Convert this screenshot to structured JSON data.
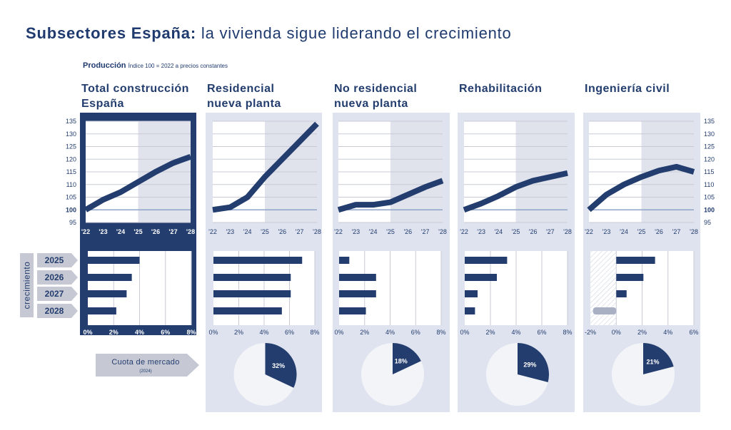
{
  "title": {
    "bold": "Subsectores España:",
    "normal": "la vivienda sigue liderando el crecimiento"
  },
  "subtitle": {
    "bold": "Producción",
    "small": "Índice 100 = 2022 a precios constantes"
  },
  "years_label": "crecimiento",
  "years": [
    "2025",
    "2026",
    "2027",
    "2028"
  ],
  "market_share": {
    "label": "Cuota de mercado",
    "sub": "(2024)"
  },
  "colors": {
    "navy": "#233d6e",
    "panel": "#dfe3ef",
    "ref": "#8ea3c8",
    "grid": "#c8cbd6",
    "shade": "#e1e3ec",
    "tab": "#c6c9d4",
    "neg": "#a9b0c4"
  },
  "chart_data": [
    {
      "type": "line",
      "title_lines": [
        "Total construcción",
        "España"
      ],
      "x": [
        "'22",
        "'23",
        "'24",
        "'25",
        "'26",
        "'27",
        "'28"
      ],
      "y": [
        100,
        104,
        107,
        111,
        115,
        118.5,
        121
      ],
      "ylim": [
        95,
        135
      ],
      "yticks": [
        95,
        100,
        105,
        110,
        115,
        120,
        125,
        130,
        135
      ],
      "reference": 100,
      "forecast_from": "'25",
      "highlight": true,
      "growth": {
        "type": "bar",
        "orientation": "horizontal",
        "categories": [
          "2025",
          "2026",
          "2027",
          "2028"
        ],
        "values": [
          4.0,
          3.4,
          3.0,
          2.2
        ],
        "xlim": [
          0,
          8
        ],
        "xticks": [
          0,
          2,
          4,
          6,
          8
        ],
        "xticklabels": [
          "0%",
          "2%",
          "4%",
          "6%",
          "8%"
        ]
      }
    },
    {
      "type": "line",
      "title_lines": [
        "Residencial",
        "nueva planta"
      ],
      "x": [
        "'22",
        "'23",
        "'24",
        "'25",
        "'26",
        "'27",
        "'28"
      ],
      "y": [
        100,
        101,
        105,
        113,
        120,
        127,
        134
      ],
      "ylim": [
        95,
        135
      ],
      "reference": 100,
      "forecast_from": "'25",
      "growth": {
        "type": "bar",
        "orientation": "horizontal",
        "categories": [
          "2025",
          "2026",
          "2027",
          "2028"
        ],
        "values": [
          7.0,
          6.1,
          6.1,
          5.4
        ],
        "xlim": [
          0,
          8
        ],
        "xticks": [
          0,
          2,
          4,
          6,
          8
        ],
        "xticklabels": [
          "0%",
          "2%",
          "4%",
          "6%",
          "8%"
        ]
      },
      "share": 32,
      "share_label": "32%"
    },
    {
      "type": "line",
      "title_lines": [
        "No residencial",
        "nueva planta"
      ],
      "x": [
        "'22",
        "'23",
        "'24",
        "'25",
        "'26",
        "'27",
        "'28"
      ],
      "y": [
        100,
        102,
        102,
        103,
        106,
        109,
        111.5
      ],
      "ylim": [
        95,
        135
      ],
      "reference": 100,
      "forecast_from": "'25",
      "growth": {
        "type": "bar",
        "orientation": "horizontal",
        "categories": [
          "2025",
          "2026",
          "2027",
          "2028"
        ],
        "values": [
          0.8,
          2.9,
          2.9,
          2.1
        ],
        "xlim": [
          0,
          8
        ],
        "xticks": [
          0,
          2,
          4,
          6,
          8
        ],
        "xticklabels": [
          "0%",
          "2%",
          "4%",
          "6%",
          "8%"
        ]
      },
      "share": 18,
      "share_label": "18%"
    },
    {
      "type": "line",
      "title_lines": [
        "Rehabilitación",
        ""
      ],
      "x": [
        "'22",
        "'23",
        "'24",
        "'25",
        "'26",
        "'27",
        "'28"
      ],
      "y": [
        100,
        102.5,
        105.5,
        109,
        111.5,
        113,
        114.5
      ],
      "ylim": [
        95,
        135
      ],
      "reference": 100,
      "forecast_from": "'25",
      "growth": {
        "type": "bar",
        "orientation": "horizontal",
        "categories": [
          "2025",
          "2026",
          "2027",
          "2028"
        ],
        "values": [
          3.3,
          2.5,
          1.0,
          0.8
        ],
        "xlim": [
          0,
          8
        ],
        "xticks": [
          0,
          2,
          4,
          6,
          8
        ],
        "xticklabels": [
          "0%",
          "2%",
          "4%",
          "6%",
          "8%"
        ]
      },
      "share": 29,
      "share_label": "29%"
    },
    {
      "type": "line",
      "title_lines": [
        "Ingeniería civil",
        ""
      ],
      "x": [
        "'22",
        "'23",
        "'24",
        "'25",
        "'26",
        "'27",
        "'28"
      ],
      "y": [
        100,
        106,
        110,
        113,
        115.5,
        117,
        115
      ],
      "ylim": [
        95,
        135
      ],
      "yticks": [
        95,
        100,
        105,
        110,
        115,
        120,
        125,
        130,
        135
      ],
      "reference": 100,
      "forecast_from": "'25",
      "growth": {
        "type": "bar",
        "orientation": "horizontal",
        "categories": [
          "2025",
          "2026",
          "2027",
          "2028"
        ],
        "values": [
          3.0,
          2.1,
          0.8,
          -1.8
        ],
        "xlim": [
          -2,
          6
        ],
        "xticks": [
          -2,
          0,
          2,
          4,
          6
        ],
        "xticklabels": [
          "-2%",
          "0%",
          "2%",
          "4%",
          "6%"
        ]
      },
      "share": 21,
      "share_label": "21%"
    }
  ]
}
